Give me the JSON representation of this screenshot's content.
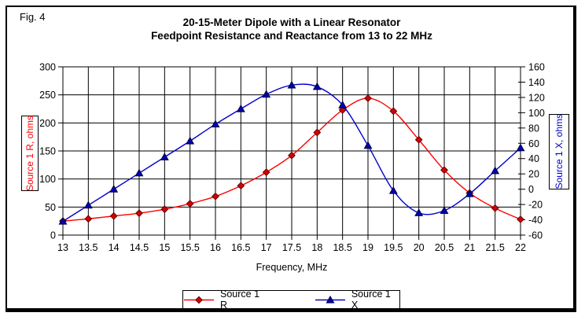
{
  "fig_label": "Fig. 4",
  "chart_data": {
    "type": "line",
    "title_line1": "20-15-Meter Dipole with a Linear Resonator",
    "title_line2": "Feedpoint Resistance and Reactance from 13 to 22 MHz",
    "xlabel": "Frequency, MHz",
    "grid": true,
    "legend_position": "bottom-center",
    "x_range": [
      13,
      22
    ],
    "x_tick_step": 0.5,
    "left_axis": {
      "title": "Source 1 R, ohms",
      "min": 0,
      "max": 300,
      "tick_step": 50,
      "color": "#ff0000"
    },
    "right_axis": {
      "title": "Source 1 X, ohms",
      "min": -60,
      "max": 160,
      "tick_step": 20,
      "color": "#0000cc"
    },
    "x": [
      13,
      13.5,
      14,
      14.5,
      15,
      15.5,
      16,
      16.5,
      17,
      17.5,
      18,
      18.5,
      19,
      19.5,
      20,
      20.5,
      21,
      21.5,
      22
    ],
    "series": [
      {
        "name": "Source 1 R",
        "axis": "left",
        "marker": "diamond",
        "color": "#ff0000",
        "marker_fill": "#d40000",
        "marker_edge": "#600000",
        "values": [
          25,
          29,
          34,
          39,
          46,
          56,
          69,
          88,
          112,
          142,
          183,
          223,
          244,
          221,
          170,
          116,
          75,
          48,
          28
        ]
      },
      {
        "name": "Source 1 X",
        "axis": "right",
        "marker": "triangle",
        "color": "#0000cc",
        "marker_fill": "#0000b4",
        "marker_edge": "#000040",
        "values": [
          -42,
          -21,
          0,
          21,
          42,
          63,
          85,
          105,
          124,
          136,
          134,
          110,
          57,
          -2,
          -31,
          -28,
          -6,
          24,
          54
        ]
      }
    ]
  }
}
